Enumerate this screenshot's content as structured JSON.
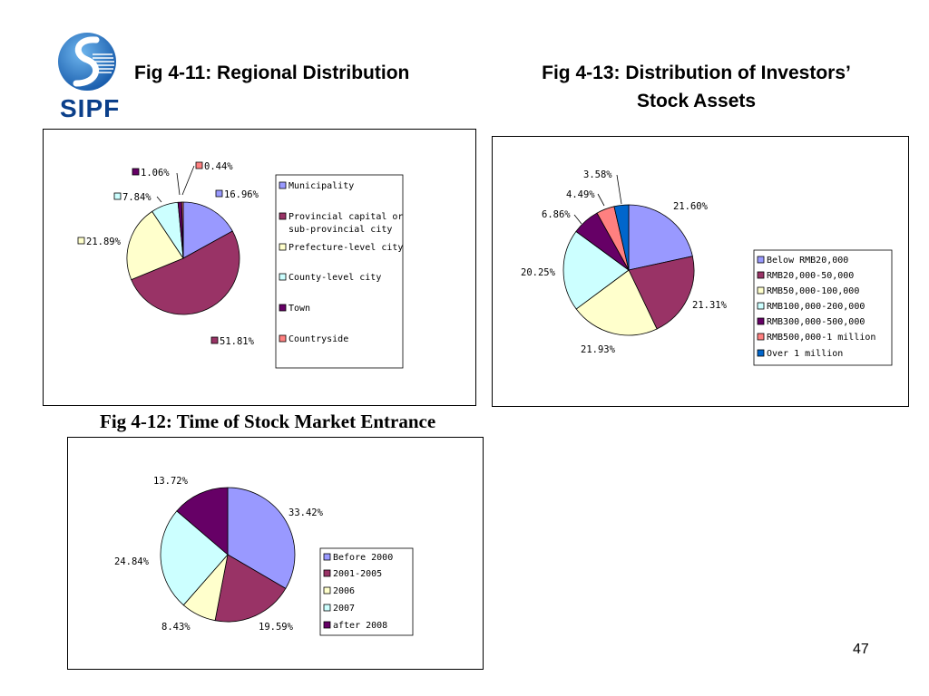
{
  "brand": {
    "logo_text": "SIPF"
  },
  "titles": {
    "fig11": "Fig 4-11: Regional Distribution",
    "fig13_line1": "Fig 4-13: Distribution of Investors’",
    "fig13_line2": "Stock Assets",
    "fig12": "Fig 4-12: Time of Stock Market Entrance"
  },
  "page_number": "47",
  "chart_data": [
    {
      "id": "fig11",
      "type": "pie",
      "title": "Fig 4-11: Regional Distribution",
      "categories": [
        "Municipality",
        "Provincial capital or sub-provincial city",
        "Prefecture-level city",
        "County-level city",
        "Town",
        "Countryside"
      ],
      "legend_lines": [
        [
          "Municipality"
        ],
        [
          "Provincial capital or",
          "sub-provincial city"
        ],
        [
          "Prefecture-level city"
        ],
        [
          "County-level city"
        ],
        [
          "Town"
        ],
        [
          "Countryside"
        ]
      ],
      "values": [
        16.96,
        51.81,
        21.89,
        7.84,
        1.06,
        0.44
      ],
      "labels": [
        "16.96%",
        "51.81%",
        "21.89%",
        "7.84%",
        "1.06%",
        "0.44%"
      ],
      "colors": [
        "#9999ff",
        "#993366",
        "#ffffcc",
        "#ccffff",
        "#660066",
        "#ff8080"
      ],
      "legend": "right"
    },
    {
      "id": "fig13",
      "type": "pie",
      "title": "Fig 4-13: Distribution of Investors’ Stock Assets",
      "categories": [
        "Below RMB20,000",
        "RMB20,000-50,000",
        "RMB50,000-100,000",
        "RMB100,000-200,000",
        "RMB300,000-500,000",
        "RMB500,000-1 million",
        "Over 1 million"
      ],
      "legend_lines": [
        [
          "Below RMB20,000"
        ],
        [
          "RMB20,000-50,000"
        ],
        [
          "RMB50,000-100,000"
        ],
        [
          "RMB100,000-200,000"
        ],
        [
          "RMB300,000-500,000"
        ],
        [
          "RMB500,000-1 million"
        ],
        [
          "Over 1 million"
        ]
      ],
      "values": [
        21.6,
        21.31,
        21.93,
        20.25,
        6.86,
        4.49,
        3.58
      ],
      "labels": [
        "21.60%",
        "21.31%",
        "21.93%",
        "20.25%",
        "6.86%",
        "4.49%",
        "3.58%"
      ],
      "colors": [
        "#9999ff",
        "#993366",
        "#ffffcc",
        "#ccffff",
        "#660066",
        "#ff8080",
        "#0066cc"
      ],
      "legend": "right"
    },
    {
      "id": "fig12",
      "type": "pie",
      "title": "Fig 4-12: Time of Stock Market Entrance",
      "categories": [
        "Before 2000",
        "2001-2005",
        "2006",
        "2007",
        "after 2008"
      ],
      "legend_lines": [
        [
          "Before 2000"
        ],
        [
          "2001-2005"
        ],
        [
          "2006"
        ],
        [
          "2007"
        ],
        [
          "after 2008"
        ]
      ],
      "values": [
        33.42,
        19.59,
        8.43,
        24.84,
        13.72
      ],
      "labels": [
        "33.42%",
        "19.59%",
        "8.43%",
        "24.84%",
        "13.72%"
      ],
      "colors": [
        "#9999ff",
        "#993366",
        "#ffffcc",
        "#ccffff",
        "#660066"
      ],
      "legend": "right"
    }
  ]
}
